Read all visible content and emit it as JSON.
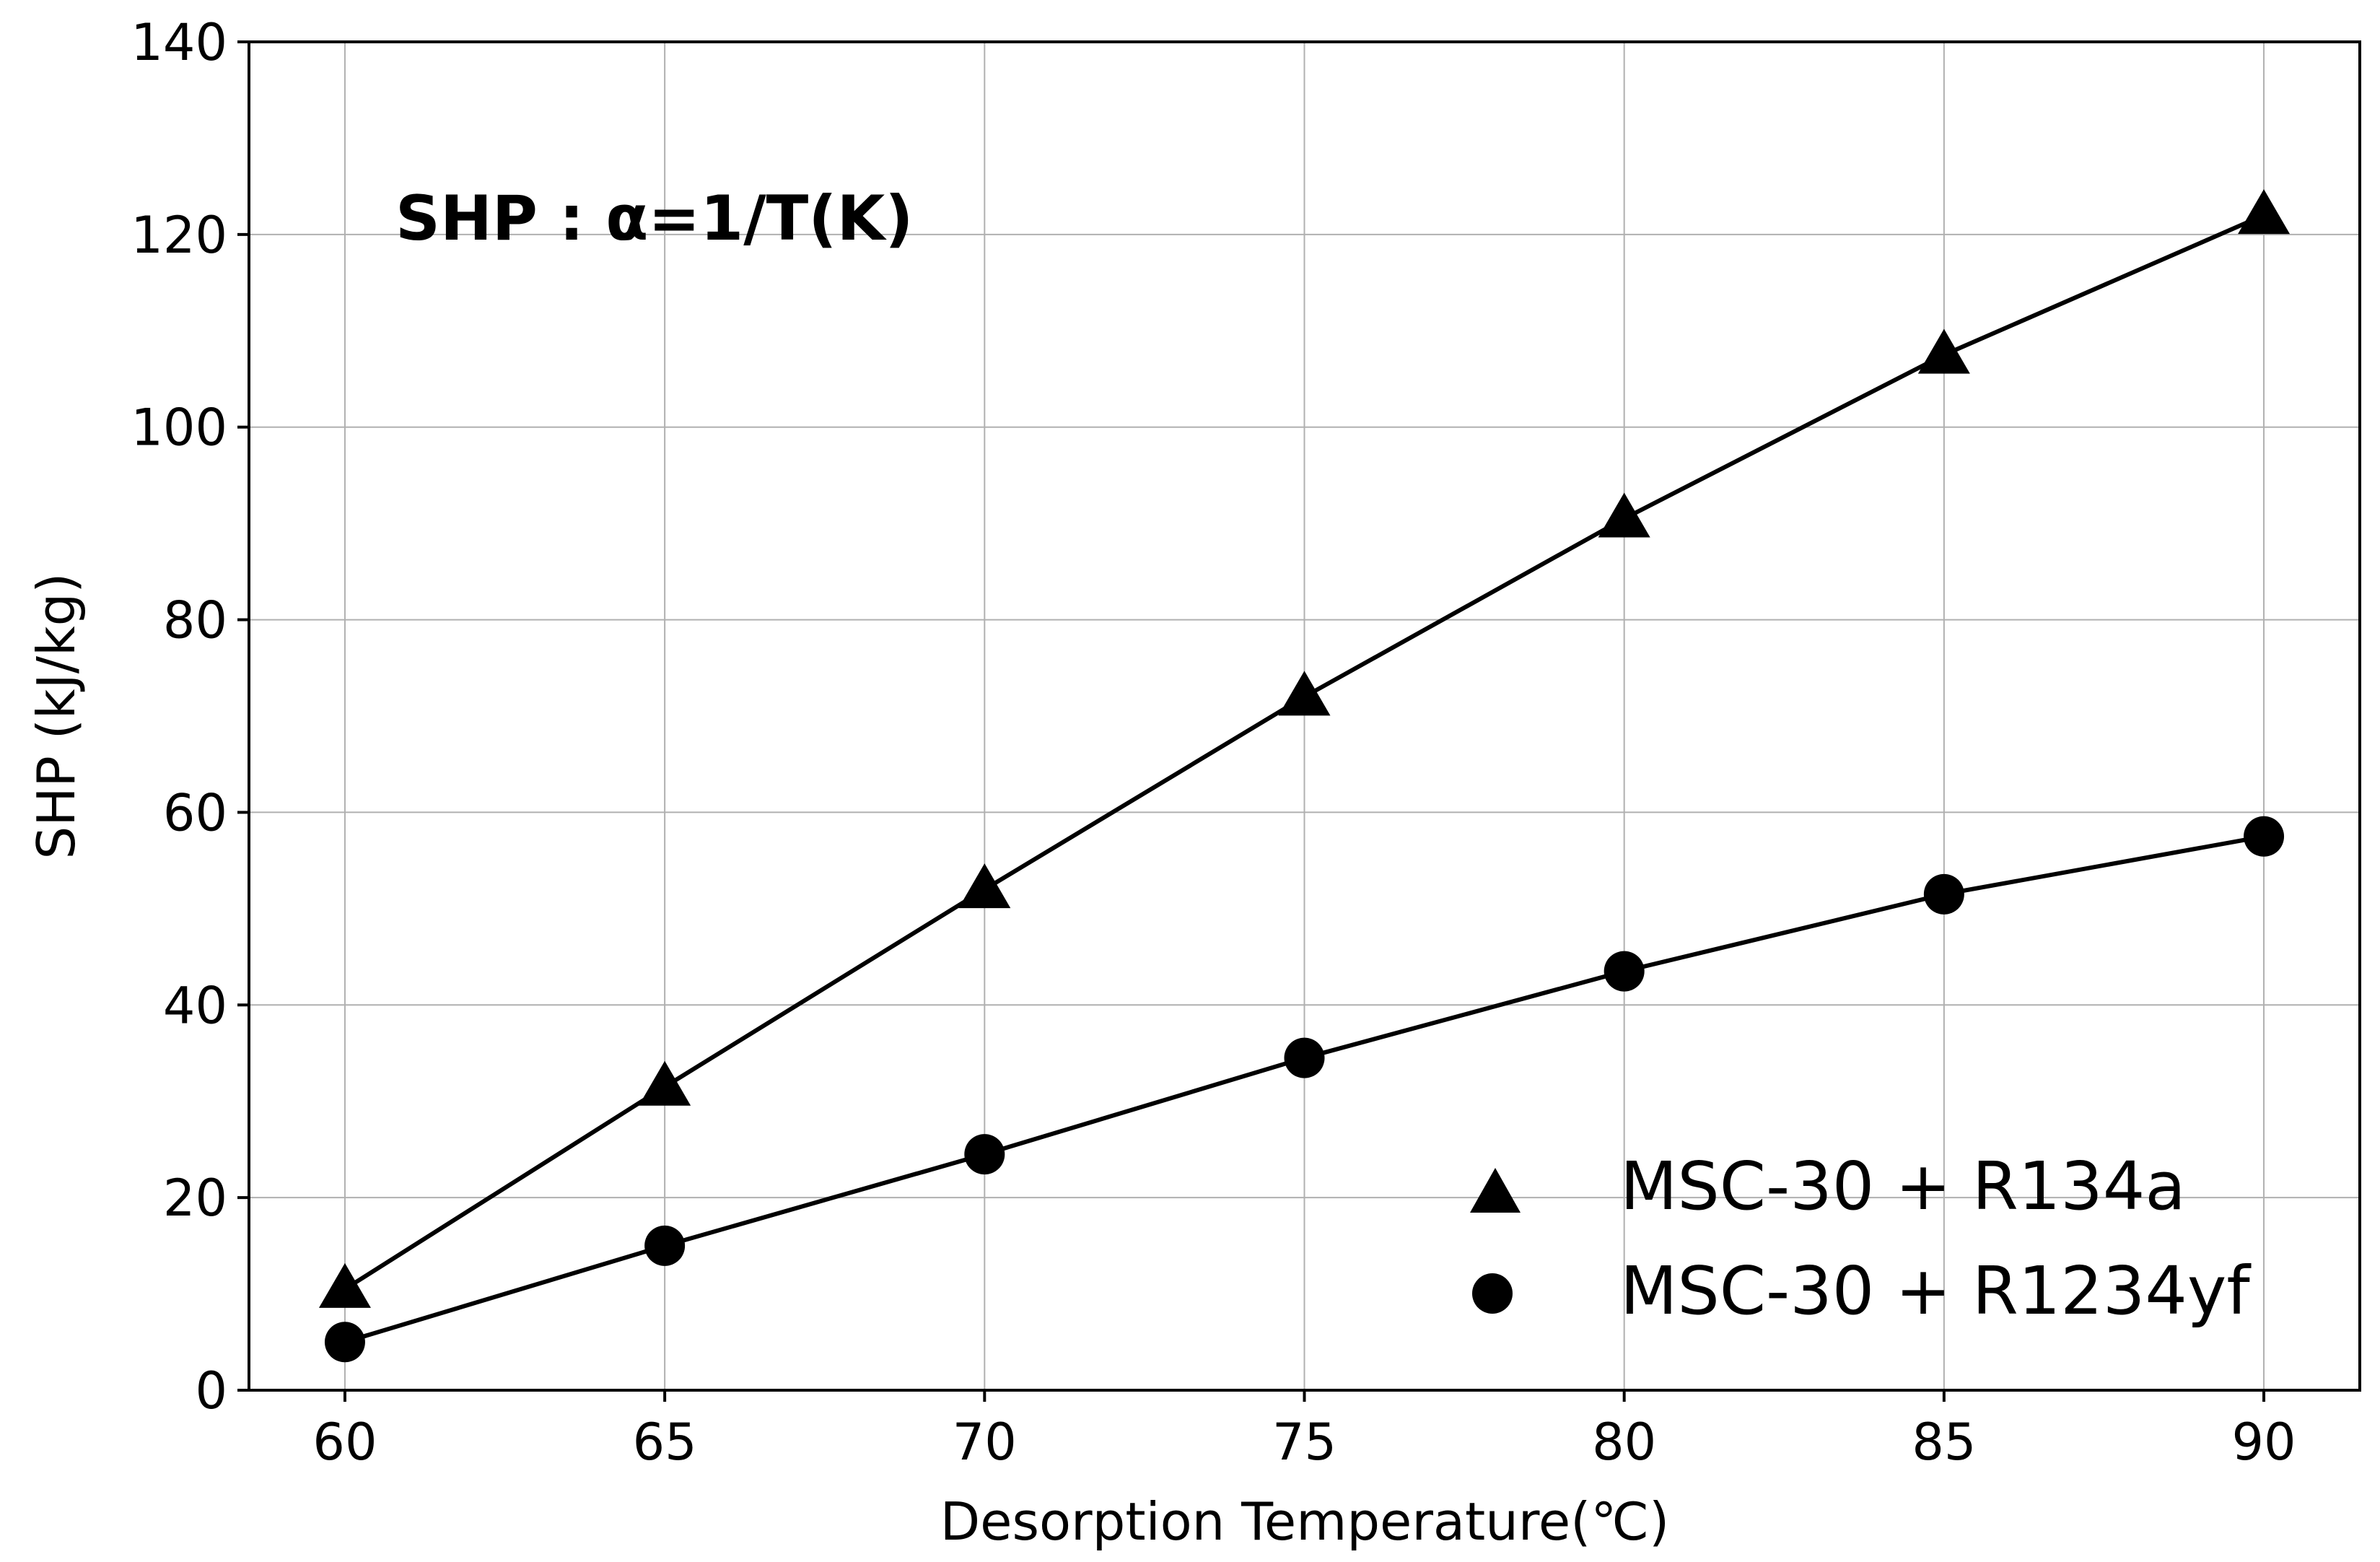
{
  "chart_data": {
    "type": "line",
    "title": "",
    "xlabel": "Desorption Temperature(℃)",
    "ylabel": "SHP (kJ/kg)",
    "annotation": "SHP : α=1/T(K)",
    "annotation_color": "#ff8c00",
    "xlim": [
      58.5,
      91.5
    ],
    "ylim": [
      0,
      140
    ],
    "x": [
      60,
      65,
      70,
      75,
      80,
      85,
      90
    ],
    "xticks": [
      60,
      65,
      70,
      75,
      80,
      85,
      90
    ],
    "yticks": [
      0,
      20,
      40,
      60,
      80,
      100,
      120,
      140
    ],
    "grid": true,
    "legend_position": "lower-right",
    "series": [
      {
        "name": "MSC-30 + R134a",
        "marker": "triangle",
        "color": "#000000",
        "values": [
          10.5,
          31.5,
          52,
          72,
          90.5,
          107.5,
          122
        ]
      },
      {
        "name": "MSC-30 + R1234yf",
        "marker": "circle",
        "color": "#000000",
        "values": [
          5,
          15,
          24.5,
          34.5,
          43.5,
          51.5,
          57.5
        ]
      }
    ]
  }
}
